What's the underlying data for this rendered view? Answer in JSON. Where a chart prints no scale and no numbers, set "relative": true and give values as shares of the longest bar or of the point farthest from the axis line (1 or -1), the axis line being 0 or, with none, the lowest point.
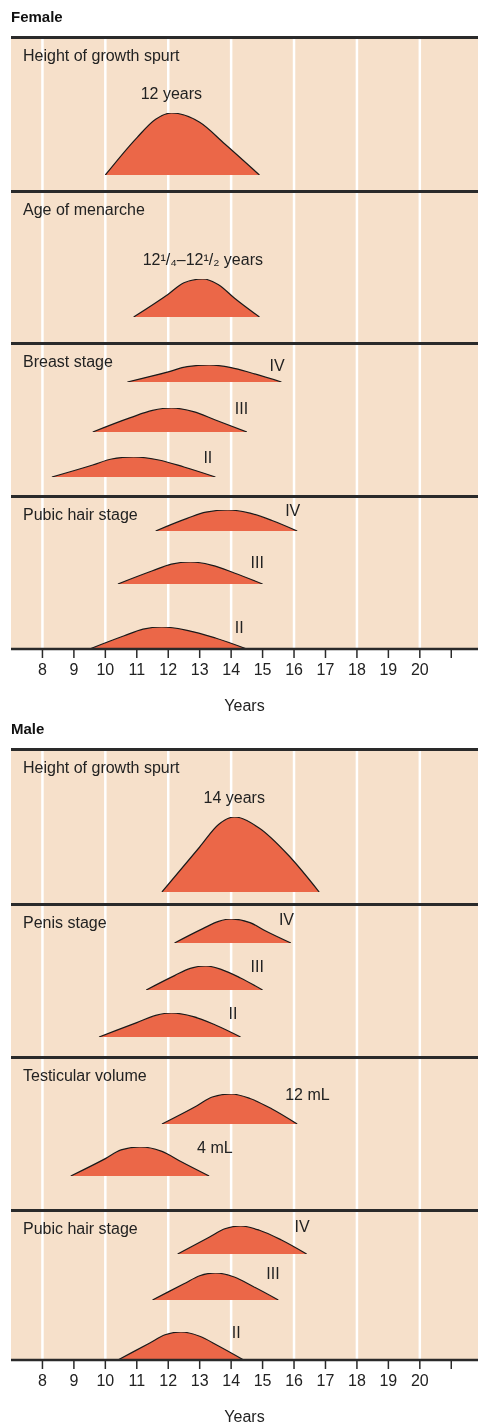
{
  "chart_data": [
    {
      "type": "area",
      "title": "Female",
      "subtitle": "Height of growth spurt",
      "annotations": [
        {
          "text": "12 years",
          "x": 12.1,
          "y": 1
        }
      ],
      "x": [
        10.0,
        11.0,
        11.6,
        12.1,
        13.0,
        13.8,
        14.9
      ],
      "series": [
        {
          "color": "#eb6748",
          "values": [
            0,
            0.6,
            0.9,
            1,
            0.85,
            0.5,
            0
          ]
        }
      ],
      "xlim": [
        7,
        21.85
      ],
      "xticks": [
        8,
        10,
        12,
        14,
        16,
        18,
        20
      ],
      "grid": "x",
      "relative": true,
      "tick_labels": false
    },
    {
      "type": "area",
      "subtitle": "Age of menarche",
      "annotations": [
        {
          "text": "12¹/₄–12¹/₂ years",
          "x": 13.1,
          "y": 1
        }
      ],
      "x": [
        10.9,
        12.0,
        12.5,
        13.1,
        13.6,
        14.1,
        14.9
      ],
      "series": [
        {
          "color": "#eb6748",
          "values": [
            0,
            0.6,
            0.9,
            1,
            0.85,
            0.5,
            0
          ]
        }
      ],
      "xlim": [
        7,
        21.85
      ],
      "xticks": [
        8,
        10,
        12,
        14,
        16,
        18,
        20
      ],
      "grid": "x",
      "relative": true,
      "tick_labels": false
    },
    {
      "type": "area",
      "subtitle": "Breast stage",
      "x": [
        10.7,
        12.0,
        12.6,
        13.3,
        14.0,
        14.7,
        15.6
      ],
      "series": [
        {
          "name": "IV",
          "color": "#eb6748",
          "values": [
            0,
            0.6,
            0.9,
            1,
            0.85,
            0.5,
            0
          ]
        }
      ],
      "xlim": [
        7,
        21.85
      ],
      "xticks": [
        8,
        10,
        12,
        14,
        16,
        18,
        20
      ],
      "grid": "x",
      "relative": true,
      "tick_labels": false
    },
    {
      "type": "area",
      "x": [
        9.6,
        10.8,
        11.5,
        12.1,
        12.8,
        13.5,
        14.5
      ],
      "series": [
        {
          "name": "III",
          "color": "#eb6748",
          "values": [
            0,
            0.6,
            0.9,
            1,
            0.85,
            0.5,
            0
          ]
        }
      ],
      "xlim": [
        7,
        21.85
      ],
      "xticks": [
        8,
        10,
        12,
        14,
        16,
        18,
        20
      ],
      "grid": "x",
      "relative": true,
      "tick_labels": false
    },
    {
      "type": "area",
      "x": [
        8.3,
        9.6,
        10.2,
        10.9,
        11.7,
        12.5,
        13.5
      ],
      "series": [
        {
          "name": "II",
          "color": "#eb6748",
          "values": [
            0,
            0.6,
            0.9,
            1,
            0.85,
            0.5,
            0
          ]
        }
      ],
      "xlim": [
        7,
        21.85
      ],
      "xticks": [
        8,
        10,
        12,
        14,
        16,
        18,
        20
      ],
      "grid": "x",
      "relative": true,
      "tick_labels": false
    },
    {
      "type": "area",
      "subtitle": "Pubic hair stage",
      "x": [
        11.6,
        12.6,
        13.2,
        13.9,
        14.6,
        15.3,
        16.1
      ],
      "series": [
        {
          "name": "IV",
          "color": "#eb6748",
          "values": [
            0,
            0.6,
            0.9,
            1,
            0.85,
            0.5,
            0
          ]
        }
      ],
      "xlim": [
        7,
        21.85
      ],
      "xticks": [
        8,
        10,
        12,
        14,
        16,
        18,
        20
      ],
      "grid": "x",
      "relative": true,
      "tick_labels": false
    },
    {
      "type": "area",
      "x": [
        10.4,
        11.5,
        12.1,
        12.7,
        13.4,
        14.1,
        15.0
      ],
      "series": [
        {
          "name": "III",
          "color": "#eb6748",
          "values": [
            0,
            0.6,
            0.9,
            1,
            0.85,
            0.5,
            0
          ]
        }
      ],
      "xlim": [
        7,
        21.85
      ],
      "xticks": [
        8,
        10,
        12,
        14,
        16,
        18,
        20
      ],
      "grid": "x",
      "relative": true,
      "tick_labels": false
    },
    {
      "type": "area",
      "xlabel": "Years",
      "x": [
        9.5,
        10.6,
        11.2,
        11.8,
        12.6,
        13.5,
        14.5
      ],
      "series": [
        {
          "name": "II",
          "color": "#eb6748",
          "values": [
            0,
            0.6,
            0.9,
            1,
            0.85,
            0.5,
            0
          ]
        }
      ],
      "xlim": [
        7,
        21.85
      ],
      "xticks": [
        8,
        9,
        10,
        11,
        12,
        13,
        14,
        15,
        16,
        17,
        18,
        19,
        20,
        {
          "value": 21,
          "label": null
        }
      ],
      "grid": "x",
      "relative": true,
      "tick_labels": "x"
    },
    {
      "type": "area",
      "title": "Male",
      "subtitle": "Height of growth spurt",
      "annotations": [
        {
          "text": "14 years",
          "x": 14.1,
          "y": 1
        }
      ],
      "x": [
        11.8,
        13.0,
        13.6,
        14.1,
        14.9,
        15.8,
        16.8
      ],
      "series": [
        {
          "color": "#eb6748",
          "values": [
            0,
            0.6,
            0.9,
            1,
            0.85,
            0.5,
            0
          ]
        }
      ],
      "xlim": [
        7,
        21.85
      ],
      "xticks": [
        8,
        10,
        12,
        14,
        16,
        18,
        20
      ],
      "grid": "x",
      "relative": true,
      "tick_labels": false
    },
    {
      "type": "area",
      "subtitle": "Penis stage",
      "x": [
        12.2,
        13.1,
        13.6,
        14.0,
        14.6,
        15.1,
        15.9
      ],
      "series": [
        {
          "name": "IV",
          "color": "#eb6748",
          "values": [
            0,
            0.6,
            0.9,
            1,
            0.85,
            0.5,
            0
          ]
        }
      ],
      "xlim": [
        7,
        21.85
      ],
      "xticks": [
        8,
        10,
        12,
        14,
        16,
        18,
        20
      ],
      "grid": "x",
      "relative": true,
      "tick_labels": false
    },
    {
      "type": "area",
      "x": [
        11.3,
        12.2,
        12.7,
        13.2,
        13.7,
        14.3,
        15.0
      ],
      "series": [
        {
          "name": "III",
          "color": "#eb6748",
          "values": [
            0,
            0.6,
            0.9,
            1,
            0.85,
            0.5,
            0
          ]
        }
      ],
      "xlim": [
        7,
        21.85
      ],
      "xticks": [
        8,
        10,
        12,
        14,
        16,
        18,
        20
      ],
      "grid": "x",
      "relative": true,
      "tick_labels": false
    },
    {
      "type": "area",
      "x": [
        9.8,
        11.0,
        11.6,
        12.1,
        12.8,
        13.5,
        14.3
      ],
      "series": [
        {
          "name": "II",
          "color": "#eb6748",
          "values": [
            0,
            0.6,
            0.9,
            1,
            0.85,
            0.5,
            0
          ]
        }
      ],
      "xlim": [
        7,
        21.85
      ],
      "xticks": [
        8,
        10,
        12,
        14,
        16,
        18,
        20
      ],
      "grid": "x",
      "relative": true,
      "tick_labels": false
    },
    {
      "type": "area",
      "subtitle": "Testicular volume",
      "x": [
        11.8,
        12.9,
        13.4,
        14.0,
        14.6,
        15.3,
        16.1
      ],
      "series": [
        {
          "name": "12 mL",
          "color": "#eb6748",
          "values": [
            0,
            0.6,
            0.9,
            1,
            0.85,
            0.5,
            0
          ]
        }
      ],
      "xlim": [
        7,
        21.85
      ],
      "xticks": [
        8,
        10,
        12,
        14,
        16,
        18,
        20
      ],
      "grid": "x",
      "relative": true,
      "tick_labels": false
    },
    {
      "type": "area",
      "x": [
        8.9,
        10.0,
        10.5,
        11.1,
        11.8,
        12.4,
        13.3
      ],
      "series": [
        {
          "name": "4 mL",
          "color": "#eb6748",
          "values": [
            0,
            0.6,
            0.9,
            1,
            0.85,
            0.5,
            0
          ]
        }
      ],
      "xlim": [
        7,
        21.85
      ],
      "xticks": [
        8,
        10,
        12,
        14,
        16,
        18,
        20
      ],
      "grid": "x",
      "relative": true,
      "tick_labels": false
    },
    {
      "type": "area",
      "subtitle": "Pubic hair stage",
      "x": [
        12.3,
        13.3,
        13.8,
        14.3,
        14.9,
        15.6,
        16.4
      ],
      "series": [
        {
          "name": "IV",
          "color": "#eb6748",
          "values": [
            0,
            0.6,
            0.9,
            1,
            0.85,
            0.5,
            0
          ]
        }
      ],
      "xlim": [
        7,
        21.85
      ],
      "xticks": [
        8,
        10,
        12,
        14,
        16,
        18,
        20
      ],
      "grid": "x",
      "relative": true,
      "tick_labels": false
    },
    {
      "type": "area",
      "x": [
        11.5,
        12.5,
        13.0,
        13.5,
        14.1,
        14.7,
        15.5
      ],
      "series": [
        {
          "name": "III",
          "color": "#eb6748",
          "values": [
            0,
            0.6,
            0.9,
            1,
            0.85,
            0.5,
            0
          ]
        }
      ],
      "xlim": [
        7,
        21.85
      ],
      "xticks": [
        8,
        10,
        12,
        14,
        16,
        18,
        20
      ],
      "grid": "x",
      "relative": true,
      "tick_labels": false
    },
    {
      "type": "area",
      "xlabel": "Years",
      "x": [
        10.4,
        11.4,
        11.9,
        12.4,
        13.0,
        13.6,
        14.4
      ],
      "series": [
        {
          "name": "II",
          "color": "#eb6748",
          "values": [
            0,
            0.6,
            0.9,
            1,
            0.85,
            0.5,
            0
          ]
        }
      ],
      "xlim": [
        7,
        21.85
      ],
      "xticks": [
        8,
        9,
        10,
        11,
        12,
        13,
        14,
        15,
        16,
        17,
        18,
        19,
        20,
        {
          "value": 21,
          "label": null
        }
      ],
      "grid": "x",
      "relative": true,
      "tick_labels": "x"
    }
  ]
}
